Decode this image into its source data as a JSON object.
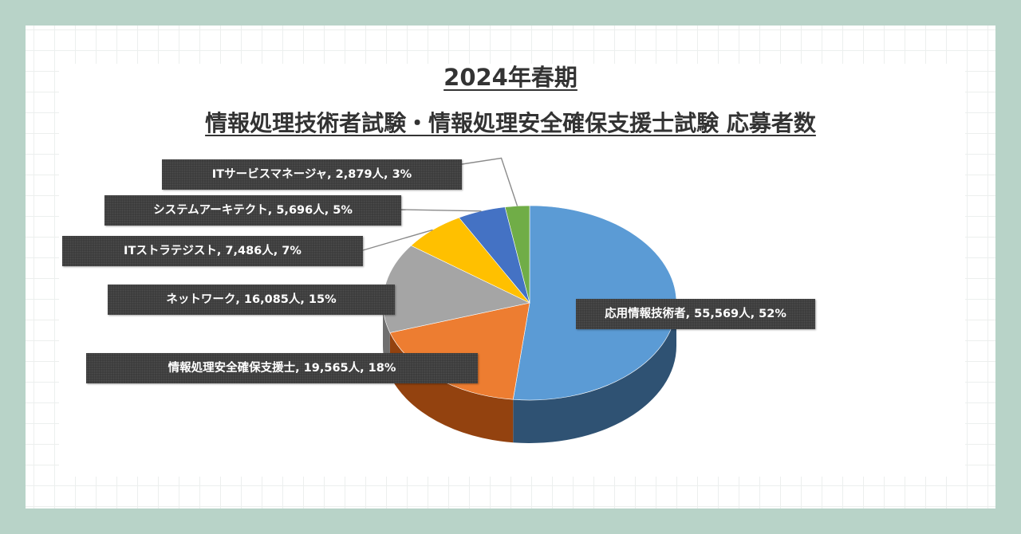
{
  "chart_data": {
    "type": "pie",
    "title": "2024年春期",
    "subtitle": "情報処理技術者試験・情報処理安全確保支援士試験 応募者数",
    "unit": "人",
    "slices": [
      {
        "label": "応用情報技術者",
        "value": 55569,
        "percent": 52,
        "color": "#5b9bd5",
        "side": "#2f5273"
      },
      {
        "label": "情報処理安全確保支援士",
        "value": 19565,
        "percent": 18,
        "color": "#ed7d31",
        "side": "#93420f"
      },
      {
        "label": "ネットワーク",
        "value": 16085,
        "percent": 15,
        "color": "#a5a5a5",
        "side": "#6f6f6f"
      },
      {
        "label": "ITストラテジスト",
        "value": 7486,
        "percent": 7,
        "color": "#ffc000",
        "side": "#a67c00"
      },
      {
        "label": "システムアーキテクト",
        "value": 5696,
        "percent": 5,
        "color": "#4472c4",
        "side": "#284a85"
      },
      {
        "label": "ITサービスマネージャ",
        "value": 2879,
        "percent": 3,
        "color": "#70ad47",
        "side": "#46702b"
      }
    ],
    "data_labels": [
      "応用情報技術者, 55,569人, 52%",
      "情報処理安全確保支援士, 19,565人, 18%",
      "ネットワーク, 16,085人, 15%",
      "ITストラテジスト, 7,486人, 7%",
      "システムアーキテクト, 5,696人, 5%",
      "ITサービスマネージャ, 2,879人, 3%"
    ],
    "legend": "none",
    "style": "3d-pie"
  },
  "colors": {
    "page_background": "#b8d3c8",
    "label_background": "#3a3a3a",
    "title_text": "#333333"
  }
}
